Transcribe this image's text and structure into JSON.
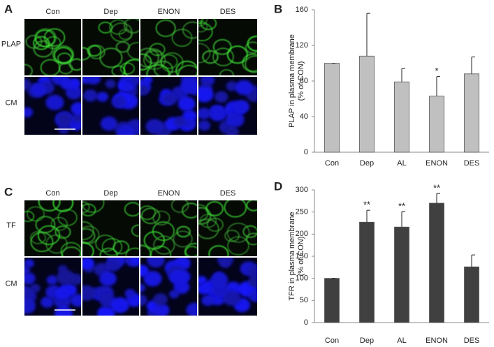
{
  "panel_labels": [
    "A",
    "B",
    "C",
    "D"
  ],
  "image_panels": [
    {
      "columns": [
        "Con",
        "Dep",
        "ENON",
        "DES"
      ],
      "rows": [
        "PLAP",
        "CM"
      ]
    },
    {
      "columns": [
        "Con",
        "Dep",
        "ENON",
        "DES"
      ],
      "rows": [
        "TF",
        "CM"
      ]
    }
  ],
  "chart_data": [
    {
      "type": "bar",
      "y_label": [
        "PLAP in plasma membrane",
        "(% of CON)"
      ],
      "categories": [
        "Con",
        "Dep",
        "AL",
        "ENON",
        "DES"
      ],
      "values": [
        100,
        108,
        79,
        63,
        88
      ],
      "errors": [
        0,
        48,
        15,
        22,
        19
      ],
      "significance": [
        null,
        null,
        null,
        "*",
        null
      ],
      "color": "#c0c0c0",
      "ylim": [
        0,
        160
      ],
      "yticks": [
        0,
        40,
        80,
        120,
        160
      ]
    },
    {
      "type": "bar",
      "y_label": [
        "TFR in plasma membrane",
        "(% of CON)"
      ],
      "categories": [
        "Con",
        "Dep",
        "AL",
        "ENON",
        "DES"
      ],
      "values": [
        100,
        227,
        216,
        270,
        126
      ],
      "errors": [
        0,
        27,
        35,
        22,
        27
      ],
      "significance": [
        null,
        "**",
        "**",
        "**",
        null
      ],
      "color": "#404040",
      "ylim": [
        0,
        300
      ],
      "yticks": [
        0,
        50,
        100,
        150,
        200,
        250,
        300
      ]
    }
  ]
}
